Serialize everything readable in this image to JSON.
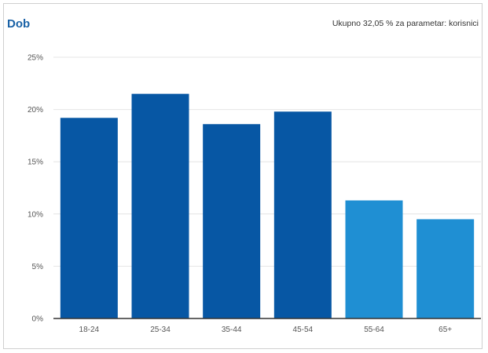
{
  "header": {
    "title": "Dob",
    "summary": "Ukupno 32,05 % za parametar: korisnici"
  },
  "colors": {
    "title": "#1a62a6",
    "bar_primary": "#0757a4",
    "bar_secondary": "#1f8fd3",
    "grid": "#e4e4e4",
    "axis": "#333333"
  },
  "chart_data": {
    "type": "bar",
    "title": "Dob",
    "xlabel": "",
    "ylabel": "",
    "categories": [
      "18-24",
      "25-34",
      "35-44",
      "45-54",
      "55-64",
      "65+"
    ],
    "values": [
      19.2,
      21.5,
      18.6,
      19.8,
      11.3,
      9.5
    ],
    "bar_colors": [
      "#0757a4",
      "#0757a4",
      "#0757a4",
      "#0757a4",
      "#1f8fd3",
      "#1f8fd3"
    ],
    "ylim": [
      0,
      25
    ],
    "y_ticks": [
      0,
      5,
      10,
      15,
      20,
      25
    ],
    "y_tick_labels": [
      "0%",
      "5%",
      "10%",
      "15%",
      "20%",
      "25%"
    ],
    "grid": true
  }
}
